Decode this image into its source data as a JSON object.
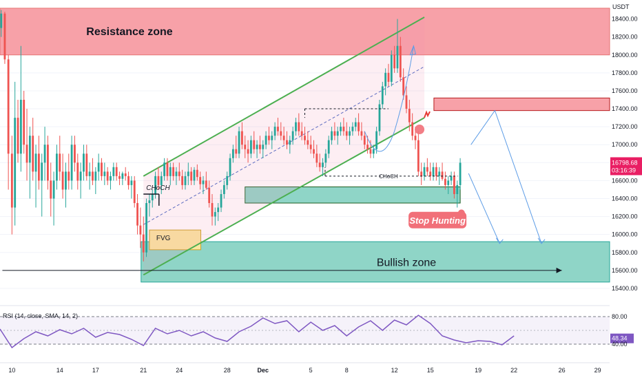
{
  "chart_data": {
    "type": "candlestick",
    "currency": "USDT",
    "price_axis": {
      "ticks": [
        "18400.00",
        "18200.00",
        "18000.00",
        "17800.00",
        "17600.00",
        "17400.00",
        "17200.00",
        "17000.00",
        "16800.00",
        "16600.00",
        "16400.00",
        "16200.00",
        "16000.00",
        "15800.00",
        "15600.00",
        "15400.00"
      ],
      "tick_values": [
        18400,
        18200,
        18000,
        17800,
        17600,
        17400,
        17200,
        17000,
        16800,
        16600,
        16400,
        16200,
        16000,
        15800,
        15600,
        15400
      ],
      "range": [
        15300,
        18550
      ]
    },
    "last_price": {
      "price": "16798.68",
      "countdown": "03:16:39",
      "value": 16798.68
    },
    "time_axis": {
      "labels": [
        "10",
        "14",
        "17",
        "21",
        "24",
        "28",
        "Dec",
        "5",
        "8",
        "12",
        "15",
        "19",
        "22",
        "26",
        "29"
      ],
      "label_positions": [
        0,
        4,
        7,
        11,
        14,
        18,
        21,
        25,
        28,
        32,
        35,
        39,
        42,
        46,
        49
      ],
      "day_range": [
        -1,
        50
      ]
    },
    "zones": [
      {
        "name": "Resistance zone",
        "label": "Resistance zone",
        "low": 18000,
        "high": 18520,
        "from": -1,
        "to": 50
      },
      {
        "name": "upper-supply",
        "label": "",
        "low": 17380,
        "high": 17520,
        "from": 35.3,
        "to": 50
      },
      {
        "name": "Bullish zone",
        "label": "Bullish zone",
        "low": 15470,
        "high": 15920,
        "from": 10.8,
        "to": 50
      },
      {
        "name": "demand-box",
        "label": "",
        "low": 16350,
        "high": 16530,
        "from": 19.5,
        "to": 37.5
      },
      {
        "name": "FVG",
        "label": "FVG",
        "low": 15830,
        "high": 16050,
        "from": 11.5,
        "to": 15.8
      }
    ],
    "annotations": {
      "choch_left": "CHoCH",
      "choch_right": "CHoCH",
      "stop_hunting": "Stop Hunting"
    },
    "channel": {
      "upper": [
        [
          11,
          16650
        ],
        [
          34.5,
          18420
        ]
      ],
      "lower": [
        [
          11,
          15550
        ],
        [
          34.5,
          17300
        ]
      ],
      "middle": [
        [
          11,
          16110
        ],
        [
          34.5,
          17870
        ]
      ]
    },
    "rsi": {
      "title": "RSI (14, close, SMA, 14, 2)",
      "current": "48.34",
      "current_value": 48.34,
      "levels": [
        "80.00",
        "40.00"
      ],
      "range": [
        20,
        88
      ],
      "series": [
        [
          -1,
          62
        ],
        [
          0,
          35
        ],
        [
          1,
          48
        ],
        [
          2,
          58
        ],
        [
          3,
          52
        ],
        [
          4,
          61
        ],
        [
          5,
          55
        ],
        [
          6,
          63
        ],
        [
          7,
          50
        ],
        [
          8,
          57
        ],
        [
          9,
          54
        ],
        [
          10,
          47
        ],
        [
          11,
          38
        ],
        [
          12,
          63
        ],
        [
          13,
          55
        ],
        [
          14,
          60
        ],
        [
          15,
          52
        ],
        [
          16,
          58
        ],
        [
          17,
          49
        ],
        [
          18,
          44
        ],
        [
          19,
          58
        ],
        [
          20,
          66
        ],
        [
          21,
          78
        ],
        [
          22,
          70
        ],
        [
          23,
          74
        ],
        [
          24,
          58
        ],
        [
          25,
          72
        ],
        [
          26,
          60
        ],
        [
          27,
          67
        ],
        [
          28,
          52
        ],
        [
          29,
          65
        ],
        [
          30,
          74
        ],
        [
          31,
          60
        ],
        [
          32,
          75
        ],
        [
          33,
          68
        ],
        [
          34,
          82
        ],
        [
          35,
          70
        ],
        [
          36,
          52
        ],
        [
          37,
          46
        ],
        [
          38,
          42
        ],
        [
          39,
          45
        ],
        [
          40,
          44
        ],
        [
          41,
          39
        ],
        [
          42,
          52
        ]
      ]
    },
    "candles": [
      [
        -0.9,
        18300,
        18500,
        18200,
        18460
      ],
      [
        -0.6,
        18460,
        18480,
        17900,
        17950
      ],
      [
        -0.3,
        17950,
        18000,
        16500,
        16900
      ],
      [
        0.0,
        16900,
        17100,
        16000,
        16300
      ],
      [
        0.25,
        16300,
        17700,
        16100,
        17300
      ],
      [
        0.5,
        17300,
        17500,
        16800,
        16900
      ],
      [
        0.75,
        16900,
        18100,
        16700,
        17500
      ],
      [
        1.0,
        17500,
        17600,
        16900,
        17000
      ],
      [
        1.25,
        17000,
        17400,
        16600,
        16800
      ],
      [
        1.5,
        16800,
        17200,
        16400,
        17100
      ],
      [
        1.75,
        17100,
        17300,
        16600,
        16700
      ],
      [
        2.0,
        16700,
        17000,
        16300,
        16900
      ],
      [
        2.25,
        16900,
        17100,
        16500,
        16600
      ],
      [
        2.5,
        16600,
        16900,
        16200,
        16800
      ],
      [
        2.75,
        16800,
        17200,
        16600,
        17000
      ],
      [
        3.0,
        17000,
        17100,
        16500,
        16600
      ],
      [
        3.25,
        16600,
        16800,
        16200,
        16400
      ],
      [
        3.5,
        16400,
        16700,
        16100,
        16600
      ],
      [
        3.75,
        16600,
        17000,
        16500,
        16900
      ],
      [
        4.0,
        16900,
        17100,
        16600,
        16700
      ],
      [
        4.25,
        16700,
        16900,
        16400,
        16500
      ],
      [
        4.5,
        16500,
        16800,
        16300,
        16700
      ],
      [
        4.75,
        16700,
        16900,
        16500,
        16600
      ],
      [
        5.0,
        16600,
        17100,
        16500,
        17000
      ],
      [
        5.25,
        17000,
        17100,
        16700,
        16800
      ],
      [
        5.5,
        16800,
        16900,
        16500,
        16600
      ],
      [
        5.75,
        16600,
        16800,
        16400,
        16700
      ],
      [
        6.0,
        16700,
        17000,
        16600,
        16900
      ],
      [
        6.25,
        16900,
        17000,
        16600,
        16650
      ],
      [
        6.5,
        16650,
        16800,
        16500,
        16700
      ],
      [
        6.75,
        16700,
        16850,
        16550,
        16600
      ],
      [
        7.0,
        16600,
        16750,
        16450,
        16700
      ],
      [
        7.25,
        16700,
        16900,
        16600,
        16800
      ],
      [
        7.5,
        16800,
        16850,
        16600,
        16650
      ],
      [
        7.75,
        16650,
        16800,
        16550,
        16700
      ],
      [
        8.0,
        16700,
        16750,
        16550,
        16600
      ],
      [
        8.25,
        16600,
        16700,
        16500,
        16650
      ],
      [
        8.5,
        16650,
        16800,
        16600,
        16750
      ],
      [
        8.75,
        16750,
        16800,
        16600,
        16650
      ],
      [
        9.0,
        16650,
        16700,
        16550,
        16620
      ],
      [
        9.25,
        16620,
        16700,
        16550,
        16680
      ],
      [
        9.5,
        16680,
        16750,
        16600,
        16650
      ],
      [
        9.75,
        16650,
        16700,
        16500,
        16550
      ],
      [
        10.0,
        16550,
        16650,
        16400,
        16600
      ],
      [
        10.25,
        16600,
        16650,
        16300,
        16350
      ],
      [
        10.5,
        16350,
        16450,
        16000,
        16100
      ],
      [
        10.75,
        16100,
        16300,
        15850,
        16000
      ],
      [
        11.0,
        16000,
        16200,
        15700,
        15800
      ],
      [
        11.25,
        15800,
        16400,
        15750,
        16350
      ],
      [
        11.5,
        16350,
        16450,
        16200,
        16380
      ],
      [
        11.75,
        16380,
        16500,
        16300,
        16450
      ],
      [
        12.0,
        16450,
        16700,
        16400,
        16650
      ],
      [
        12.25,
        16650,
        16750,
        16500,
        16550
      ],
      [
        12.5,
        16550,
        16700,
        16450,
        16650
      ],
      [
        12.75,
        16650,
        16850,
        16600,
        16800
      ],
      [
        13.0,
        16800,
        16850,
        16600,
        16650
      ],
      [
        13.25,
        16650,
        16800,
        16550,
        16750
      ],
      [
        13.5,
        16750,
        16800,
        16600,
        16650
      ],
      [
        13.75,
        16650,
        16750,
        16550,
        16700
      ],
      [
        14.0,
        16700,
        16800,
        16600,
        16650
      ],
      [
        14.25,
        16650,
        16720,
        16500,
        16550
      ],
      [
        14.5,
        16550,
        16700,
        16500,
        16650
      ],
      [
        14.75,
        16650,
        16800,
        16550,
        16700
      ],
      [
        15.0,
        16700,
        16750,
        16550,
        16600
      ],
      [
        15.25,
        16600,
        16750,
        16550,
        16720
      ],
      [
        15.5,
        16720,
        16780,
        16600,
        16640
      ],
      [
        15.75,
        16640,
        16700,
        16500,
        16560
      ],
      [
        16.0,
        16560,
        16650,
        16450,
        16600
      ],
      [
        16.25,
        16600,
        16700,
        16500,
        16520
      ],
      [
        16.5,
        16520,
        16600,
        16300,
        16350
      ],
      [
        16.75,
        16350,
        16450,
        16100,
        16200
      ],
      [
        17.0,
        16200,
        16300,
        16100,
        16250
      ],
      [
        17.25,
        16250,
        16350,
        16150,
        16300
      ],
      [
        17.5,
        16300,
        16500,
        16250,
        16450
      ],
      [
        17.75,
        16450,
        16600,
        16400,
        16550
      ],
      [
        18.0,
        16550,
        16700,
        16500,
        16650
      ],
      [
        18.25,
        16650,
        16900,
        16600,
        16850
      ],
      [
        18.5,
        16850,
        17000,
        16800,
        16950
      ],
      [
        18.75,
        16950,
        17100,
        16850,
        16900
      ],
      [
        19.0,
        16900,
        17200,
        16850,
        17150
      ],
      [
        19.25,
        17150,
        17250,
        16950,
        17000
      ],
      [
        19.5,
        17000,
        17100,
        16850,
        16950
      ],
      [
        19.75,
        16950,
        17050,
        16800,
        16900
      ],
      [
        20.0,
        16900,
        17100,
        16850,
        17050
      ],
      [
        20.25,
        17050,
        17150,
        16900,
        16950
      ],
      [
        20.5,
        16950,
        17050,
        16850,
        17000
      ],
      [
        20.75,
        17000,
        17100,
        16900,
        16950
      ],
      [
        21.0,
        16950,
        17050,
        16850,
        17000
      ],
      [
        21.25,
        17000,
        17150,
        16950,
        17100
      ],
      [
        21.5,
        17100,
        17200,
        17000,
        17050
      ],
      [
        21.75,
        17050,
        17150,
        16950,
        17100
      ],
      [
        22.0,
        17100,
        17250,
        17050,
        17200
      ],
      [
        22.25,
        17200,
        17300,
        17100,
        17150
      ],
      [
        22.5,
        17150,
        17250,
        17050,
        17100
      ],
      [
        22.75,
        17100,
        17200,
        17000,
        17050
      ],
      [
        23.0,
        17050,
        17150,
        16950,
        17000
      ],
      [
        23.25,
        17000,
        17100,
        16900,
        17050
      ],
      [
        23.5,
        17050,
        17200,
        17000,
        17150
      ],
      [
        23.75,
        17150,
        17300,
        17100,
        17250
      ],
      [
        24.0,
        17250,
        17350,
        17100,
        17150
      ],
      [
        24.25,
        17150,
        17250,
        17050,
        17100
      ],
      [
        24.5,
        17100,
        17200,
        17000,
        17050
      ],
      [
        24.75,
        17050,
        17150,
        16950,
        17000
      ],
      [
        25.0,
        17000,
        17100,
        16900,
        16950
      ],
      [
        25.25,
        16950,
        17050,
        16850,
        16900
      ],
      [
        25.5,
        16900,
        17000,
        16750,
        16800
      ],
      [
        25.75,
        16800,
        16900,
        16700,
        16750
      ],
      [
        26.0,
        16750,
        16850,
        16650,
        16800
      ],
      [
        26.25,
        16800,
        16950,
        16750,
        16900
      ],
      [
        26.5,
        16900,
        17100,
        16850,
        17050
      ],
      [
        26.75,
        17050,
        17200,
        17000,
        17150
      ],
      [
        27.0,
        17150,
        17250,
        17050,
        17100
      ],
      [
        27.25,
        17100,
        17200,
        17000,
        17150
      ],
      [
        27.5,
        17150,
        17250,
        17100,
        17200
      ],
      [
        27.75,
        17200,
        17300,
        17100,
        17150
      ],
      [
        28.0,
        17150,
        17250,
        17050,
        17100
      ],
      [
        28.25,
        17100,
        17200,
        17000,
        17150
      ],
      [
        28.5,
        17150,
        17250,
        17100,
        17200
      ],
      [
        28.75,
        17200,
        17300,
        17150,
        17250
      ],
      [
        29.0,
        17250,
        17350,
        17100,
        17150
      ],
      [
        29.25,
        17150,
        17250,
        17050,
        17100
      ],
      [
        29.5,
        17100,
        17150,
        16950,
        17000
      ],
      [
        29.75,
        17000,
        17100,
        16900,
        16950
      ],
      [
        30.0,
        16950,
        17050,
        16850,
        16900
      ],
      [
        30.25,
        16900,
        17000,
        16850,
        16950
      ],
      [
        30.5,
        16950,
        17200,
        16900,
        17150
      ],
      [
        30.75,
        17150,
        17500,
        17100,
        17450
      ],
      [
        31.0,
        17450,
        17700,
        17400,
        17650
      ],
      [
        31.25,
        17650,
        17850,
        17550,
        17800
      ],
      [
        31.5,
        17800,
        17900,
        17650,
        17700
      ],
      [
        31.75,
        17700,
        18050,
        17650,
        18000
      ],
      [
        32.0,
        18000,
        18100,
        17800,
        17850
      ],
      [
        32.25,
        17850,
        18400,
        17800,
        18100
      ],
      [
        32.5,
        18100,
        18200,
        17700,
        17750
      ],
      [
        32.75,
        17750,
        17850,
        17500,
        17550
      ],
      [
        33.0,
        17550,
        17650,
        17350,
        17400
      ],
      [
        33.25,
        17400,
        17500,
        17150,
        17250
      ],
      [
        33.5,
        17250,
        17350,
        17050,
        17100
      ],
      [
        33.75,
        17100,
        17200,
        16950,
        17050
      ],
      [
        34.0,
        17050,
        17150,
        16650,
        16700
      ],
      [
        34.25,
        16700,
        16800,
        16550,
        16650
      ],
      [
        34.5,
        16650,
        16800,
        16600,
        16750
      ],
      [
        34.75,
        16750,
        16850,
        16650,
        16700
      ],
      [
        35.0,
        16700,
        16800,
        16600,
        16650
      ],
      [
        35.25,
        16650,
        16800,
        16600,
        16750
      ],
      [
        35.5,
        16750,
        16800,
        16600,
        16650
      ],
      [
        35.75,
        16650,
        16750,
        16550,
        16700
      ],
      [
        36.0,
        16700,
        16800,
        16600,
        16620
      ],
      [
        36.25,
        16620,
        16700,
        16500,
        16550
      ],
      [
        36.5,
        16550,
        16650,
        16450,
        16600
      ],
      [
        36.75,
        16600,
        16700,
        16550,
        16650
      ],
      [
        37.0,
        16650,
        16700,
        16400,
        16450
      ],
      [
        37.25,
        16450,
        16600,
        16300,
        16550
      ],
      [
        37.5,
        16550,
        16850,
        16500,
        16799
      ]
    ]
  }
}
